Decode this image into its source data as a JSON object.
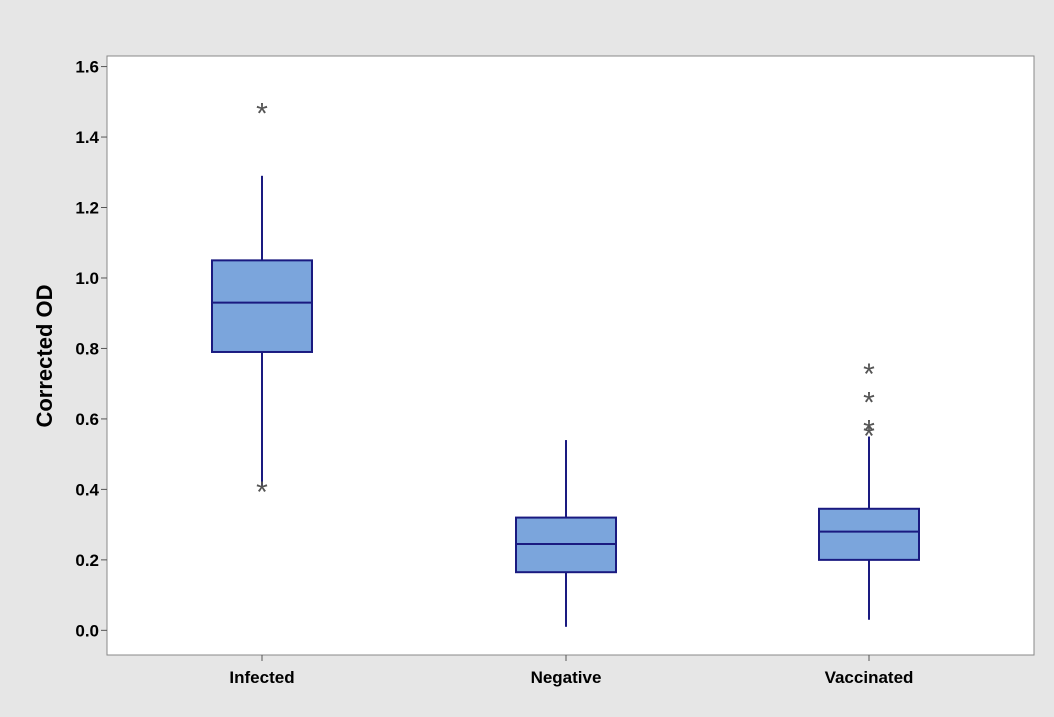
{
  "chart_data": {
    "type": "boxplot",
    "title": "",
    "xlabel": "",
    "ylabel": "Corrected OD",
    "ylim": [
      -0.07,
      1.63
    ],
    "yticks": [
      "0.0",
      "0.2",
      "0.4",
      "0.6",
      "0.8",
      "1.0",
      "1.2",
      "1.4",
      "1.6"
    ],
    "categories": [
      "Infected",
      "Negative",
      "Vaccinated"
    ],
    "boxes": [
      {
        "category": "Infected",
        "whisker_low": 0.41,
        "q1": 0.79,
        "median": 0.93,
        "q3": 1.05,
        "whisker_high": 1.29,
        "outliers": [
          1.47,
          0.395
        ]
      },
      {
        "category": "Negative",
        "whisker_low": 0.01,
        "q1": 0.165,
        "median": 0.245,
        "q3": 0.32,
        "whisker_high": 0.54,
        "outliers": []
      },
      {
        "category": "Vaccinated",
        "whisker_low": 0.03,
        "q1": 0.2,
        "median": 0.28,
        "q3": 0.345,
        "whisker_high": 0.55,
        "outliers": [
          0.73,
          0.65,
          0.57,
          0.555
        ]
      }
    ],
    "grid": false,
    "legend": "none",
    "colors": {
      "box_fill": "#7ba5dc",
      "box_stroke": "#1a1a80",
      "outlier": "#555555",
      "plot_background": "#ffffff",
      "figure_background": "#e6e6e6"
    }
  }
}
